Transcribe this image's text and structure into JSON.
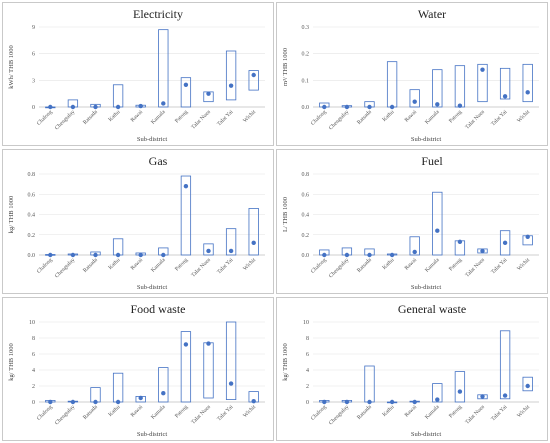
{
  "chart_data": [
    {
      "type": "bar",
      "title": "Electricity",
      "xlabel": "Sub-district",
      "ylabel": "kWh/ THB 1000",
      "ylim": [
        0,
        9
      ],
      "yticks": [
        "0",
        "3",
        "6",
        "9"
      ],
      "categories": [
        "Chalong",
        "Chengtalay",
        "Ratsada",
        "Kathu",
        "Rawai",
        "Kamala",
        "Patong",
        "Talat Nuea",
        "Talat Yai",
        "Wichit"
      ],
      "range_low": [
        0,
        0,
        0,
        0,
        0,
        0,
        0,
        0.6,
        0.8,
        1.9
      ],
      "range_high": [
        0,
        0.8,
        0.3,
        2.5,
        0.2,
        8.7,
        3.3,
        1.7,
        6.3,
        4.1
      ],
      "values": [
        0,
        0,
        0,
        0,
        0.1,
        0.4,
        2.5,
        1.5,
        2.4,
        3.6
      ],
      "colors": {
        "box": "#4472c4",
        "dot": "#4472c4"
      }
    },
    {
      "type": "bar",
      "title": "Water",
      "xlabel": "Sub-district",
      "ylabel": "m³/ THB 1000",
      "ylim": [
        0,
        0.3
      ],
      "yticks": [
        "0.0",
        "0.1",
        "0.2",
        "0.3"
      ],
      "categories": [
        "Chalong",
        "Chengtalay",
        "Ratsada",
        "Kathu",
        "Rawai",
        "Kamala",
        "Patong",
        "Talat Nuea",
        "Talat Yai",
        "Wichit"
      ],
      "range_low": [
        0,
        0,
        0,
        0,
        0,
        0,
        0,
        0.02,
        0.03,
        0.02
      ],
      "range_high": [
        0.015,
        0.005,
        0.02,
        0.17,
        0.065,
        0.14,
        0.155,
        0.16,
        0.145,
        0.16
      ],
      "values": [
        0,
        0,
        0,
        0,
        0.02,
        0.01,
        0.005,
        0.14,
        0.04,
        0.055
      ],
      "colors": {
        "box": "#4472c4",
        "dot": "#4472c4"
      }
    },
    {
      "type": "bar",
      "title": "Gas",
      "xlabel": "Sub-district",
      "ylabel": "kg/ THB 1000",
      "ylim": [
        0,
        0.8
      ],
      "yticks": [
        "0.0",
        "0.2",
        "0.4",
        "0.6",
        "0.8"
      ],
      "categories": [
        "Chalong",
        "Chengtalay",
        "Ratsada",
        "Kathu",
        "Rawai",
        "Kamala",
        "Patong",
        "Talat Nuea",
        "Talat Yai",
        "Wichit"
      ],
      "range_low": [
        0,
        0,
        0,
        0,
        0,
        0,
        0,
        0,
        0,
        0
      ],
      "range_high": [
        0.005,
        0.01,
        0.03,
        0.16,
        0.02,
        0.07,
        0.78,
        0.11,
        0.26,
        0.46
      ],
      "values": [
        0,
        0,
        0,
        0,
        0,
        0,
        0.68,
        0.04,
        0.04,
        0.12
      ],
      "colors": {
        "box": "#4472c4",
        "dot": "#4472c4"
      }
    },
    {
      "type": "bar",
      "title": "Fuel",
      "xlabel": "Sub-district",
      "ylabel": "L/ THB 1000",
      "ylim": [
        0,
        0.8
      ],
      "yticks": [
        "0.0",
        "0.2",
        "0.4",
        "0.6",
        "0.8"
      ],
      "categories": [
        "Chalong",
        "Chengtalay",
        "Ratsada",
        "Kathu",
        "Rawai",
        "Kamala",
        "Patong",
        "Talat Nuea",
        "Talat Yai",
        "Wichit"
      ],
      "range_low": [
        0,
        0,
        0,
        0,
        0,
        0,
        0,
        0.02,
        0,
        0.1
      ],
      "range_high": [
        0.05,
        0.07,
        0.06,
        0.01,
        0.18,
        0.62,
        0.14,
        0.06,
        0.24,
        0.19
      ],
      "values": [
        0,
        0,
        0,
        0,
        0.03,
        0.24,
        0.13,
        0.04,
        0.12,
        0.18
      ],
      "colors": {
        "box": "#4472c4",
        "dot": "#4472c4"
      }
    },
    {
      "type": "bar",
      "title": "Food waste",
      "xlabel": "Sub-district",
      "ylabel": "kg/ THB 1000",
      "ylim": [
        0,
        10
      ],
      "yticks": [
        "0",
        "2",
        "4",
        "6",
        "8",
        "10"
      ],
      "categories": [
        "Chalong",
        "Chengtalay",
        "Ratsada",
        "Kathu",
        "Rawai",
        "Kamala",
        "Patong",
        "Talat Nuea",
        "Talat Yai",
        "Wichit"
      ],
      "range_low": [
        0,
        0,
        0,
        0,
        0,
        0,
        0,
        0.5,
        0.3,
        0
      ],
      "range_high": [
        0.2,
        0.1,
        1.8,
        3.6,
        0.7,
        4.3,
        8.8,
        7.4,
        10,
        1.3
      ],
      "values": [
        0,
        0,
        0,
        0,
        0.5,
        1.1,
        7.2,
        7.3,
        2.3,
        0.1
      ],
      "colors": {
        "box": "#4472c4",
        "dot": "#4472c4"
      }
    },
    {
      "type": "bar",
      "title": "General waste",
      "xlabel": "Sub-district",
      "ylabel": "kg/ THB 1000",
      "ylim": [
        0,
        10
      ],
      "yticks": [
        "0",
        "2",
        "4",
        "6",
        "8",
        "10"
      ],
      "categories": [
        "Chalong",
        "Chengtalay",
        "Ratsada",
        "Kathu",
        "Rawai",
        "Kamala",
        "Patong",
        "Talat Nuea",
        "Talat Yai",
        "Wichit"
      ],
      "range_low": [
        0,
        0,
        0,
        0,
        0,
        0,
        0,
        0.4,
        0.4,
        1.4
      ],
      "range_high": [
        0.2,
        0.2,
        4.5,
        0,
        0.1,
        2.3,
        3.8,
        0.9,
        8.9,
        3.1
      ],
      "values": [
        0,
        0,
        0,
        0,
        0,
        0.3,
        1.3,
        0.7,
        0.8,
        2.0
      ],
      "colors": {
        "box": "#4472c4",
        "dot": "#4472c4"
      }
    }
  ]
}
